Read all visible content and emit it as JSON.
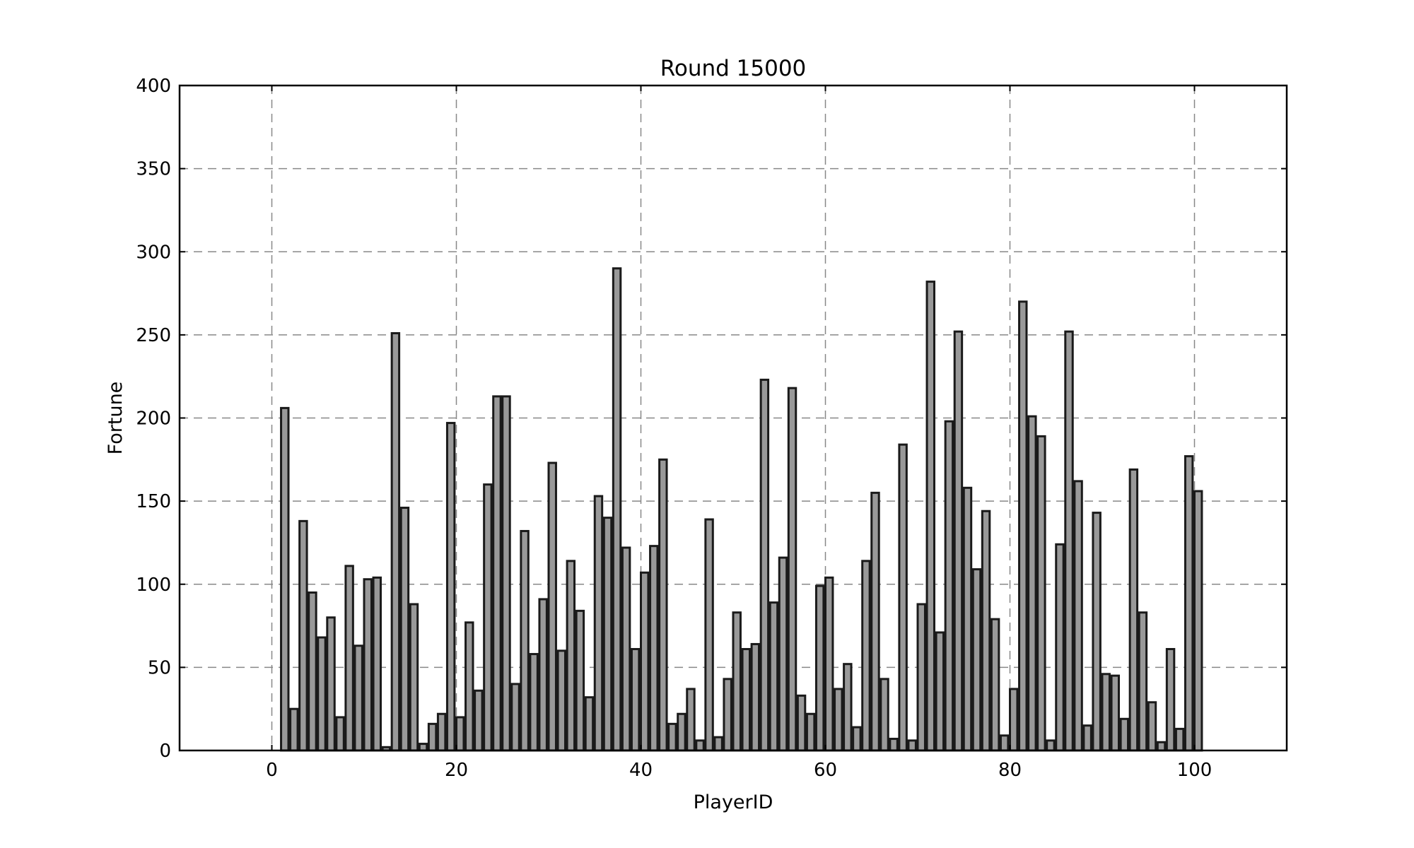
{
  "chart_data": {
    "type": "bar",
    "title": "Round 15000",
    "xlabel": "PlayerID",
    "ylabel": "Fortune",
    "xlim": [
      -10,
      110
    ],
    "ylim": [
      0,
      400
    ],
    "xticks": [
      0,
      20,
      40,
      60,
      80,
      100
    ],
    "yticks": [
      0,
      50,
      100,
      150,
      200,
      250,
      300,
      350,
      400
    ],
    "grid": true,
    "bar_color": "#999999",
    "edge_color": "#1a1a1a",
    "x": [
      1,
      2,
      3,
      4,
      5,
      6,
      7,
      8,
      9,
      10,
      11,
      12,
      13,
      14,
      15,
      16,
      17,
      18,
      19,
      20,
      21,
      22,
      23,
      24,
      25,
      26,
      27,
      28,
      29,
      30,
      31,
      32,
      33,
      34,
      35,
      36,
      37,
      38,
      39,
      40,
      41,
      42,
      43,
      44,
      45,
      46,
      47,
      48,
      49,
      50,
      51,
      52,
      53,
      54,
      55,
      56,
      57,
      58,
      59,
      60,
      61,
      62,
      63,
      64,
      65,
      66,
      67,
      68,
      69,
      70,
      71,
      72,
      73,
      74,
      75,
      76,
      77,
      78,
      79,
      80,
      81,
      82,
      83,
      84,
      85,
      86,
      87,
      88,
      89,
      90,
      91,
      92,
      93,
      94,
      95,
      96,
      97,
      98,
      99,
      100
    ],
    "values": [
      206,
      25,
      138,
      95,
      68,
      80,
      20,
      111,
      63,
      103,
      104,
      2,
      251,
      146,
      88,
      4,
      16,
      22,
      197,
      20,
      77,
      36,
      160,
      213,
      213,
      40,
      132,
      58,
      91,
      173,
      60,
      114,
      84,
      32,
      153,
      140,
      290,
      122,
      61,
      107,
      123,
      175,
      16,
      22,
      37,
      6,
      139,
      8,
      43,
      83,
      61,
      64,
      223,
      89,
      116,
      218,
      33,
      22,
      99,
      104,
      37,
      52,
      14,
      114,
      155,
      43,
      7,
      184,
      6,
      88,
      282,
      71,
      198,
      252,
      158,
      109,
      144,
      79,
      9,
      37,
      270,
      201,
      189,
      6,
      124,
      252,
      162,
      15,
      143,
      46,
      45,
      19,
      169,
      83,
      29,
      5,
      61,
      13,
      177,
      156
    ]
  }
}
